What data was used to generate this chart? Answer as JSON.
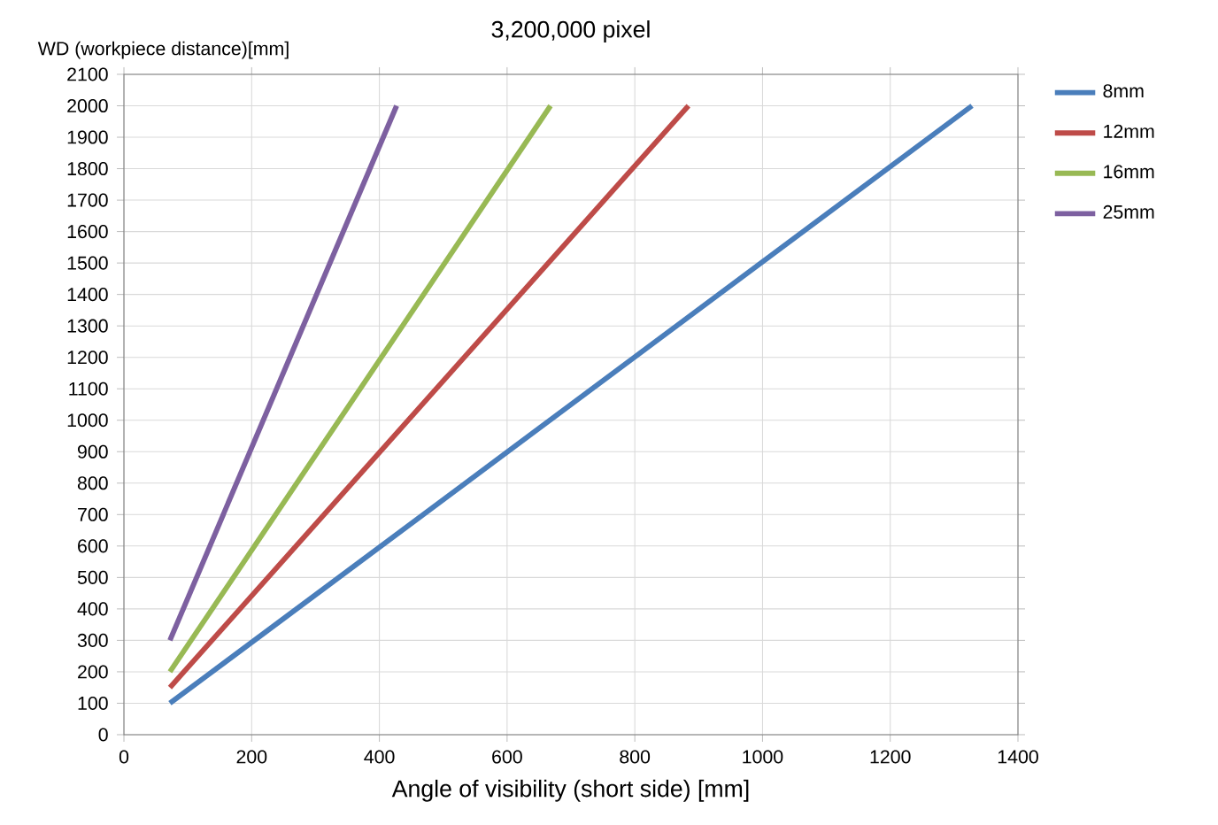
{
  "chart_data": {
    "type": "line",
    "title": "3,200,000 pixel",
    "xlabel": "Angle of visibility (short side) [mm]",
    "ylabel": "WD (workpiece distance)[mm]",
    "xlim": [
      0,
      1400
    ],
    "xticks": [
      0,
      200,
      400,
      600,
      800,
      1000,
      1200,
      1400
    ],
    "ylim": [
      0,
      2100
    ],
    "yticks": [
      0,
      100,
      200,
      300,
      400,
      500,
      600,
      700,
      800,
      900,
      1000,
      1100,
      1200,
      1300,
      1400,
      1500,
      1600,
      1700,
      1800,
      1900,
      2000,
      2100
    ],
    "grid": true,
    "legend": "right",
    "marker": "none",
    "line_style": "solid",
    "series": [
      {
        "name": "8mm",
        "color": "#4a7ebb",
        "x": [
          72,
          1328
        ],
        "values": [
          100,
          2000
        ]
      },
      {
        "name": "12mm",
        "color": "#be4b48",
        "x": [
          72,
          884
        ],
        "values": [
          150,
          2000
        ]
      },
      {
        "name": "16mm",
        "color": "#98b954",
        "x": [
          72,
          668
        ],
        "values": [
          200,
          2000
        ]
      },
      {
        "name": "25mm",
        "color": "#7d60a0",
        "x": [
          72,
          427
        ],
        "values": [
          300,
          2000
        ]
      }
    ]
  }
}
